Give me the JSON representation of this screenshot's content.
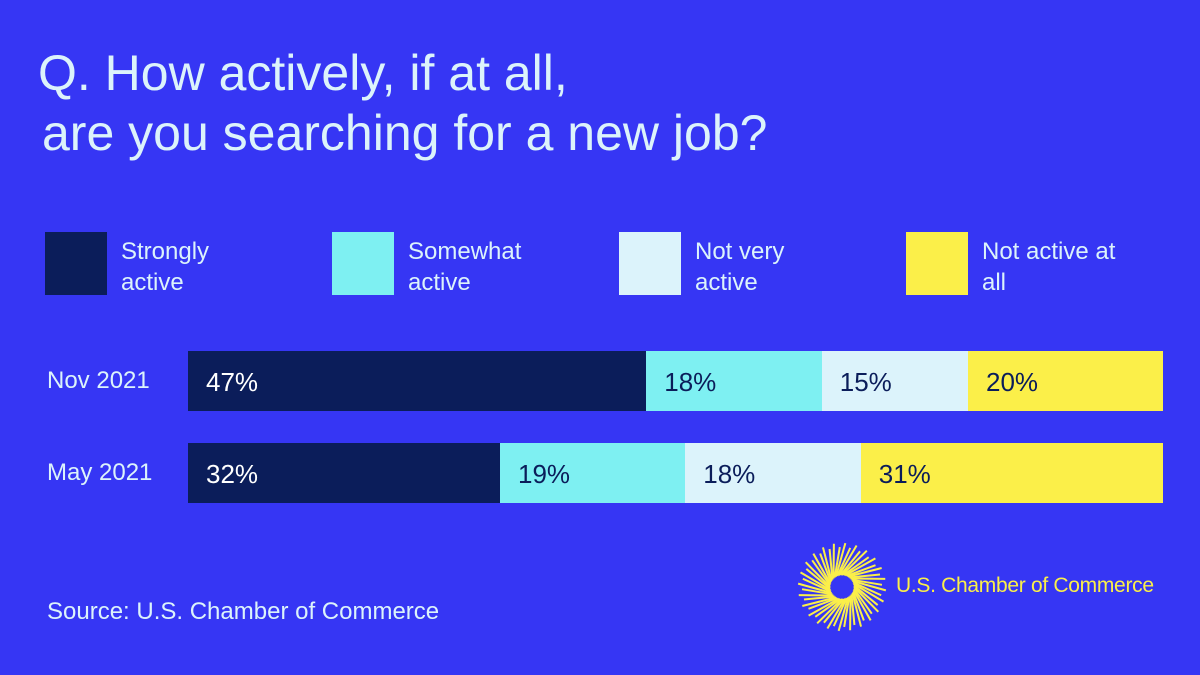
{
  "chart_data": {
    "type": "stacked-bar-horizontal",
    "title": [
      "Q. How actively, if at all,",
      "are you searching for a new job?"
    ],
    "categories": [
      "Nov 2021",
      "May 2021"
    ],
    "series": [
      {
        "name": "Strongly active",
        "color": "#0b1d5a",
        "values": [
          47,
          32
        ],
        "value_labels": [
          "47%",
          "32%"
        ]
      },
      {
        "name": "Somewhat active",
        "color": "#7ef0f2",
        "values": [
          18,
          19
        ],
        "value_labels": [
          "18%",
          "19%"
        ]
      },
      {
        "name": "Not very active",
        "color": "#dcf3fb",
        "values": [
          15,
          18
        ],
        "value_labels": [
          "15%",
          "18%"
        ]
      },
      {
        "name": "Not active at all",
        "color": "#fbef49",
        "values": [
          20,
          31
        ],
        "value_labels": [
          "20%",
          "31%"
        ]
      }
    ],
    "xlim": [
      0,
      100
    ],
    "source": "Source: U.S. Chamber of Commerce",
    "logo_text": "U.S. Chamber of Commerce"
  }
}
